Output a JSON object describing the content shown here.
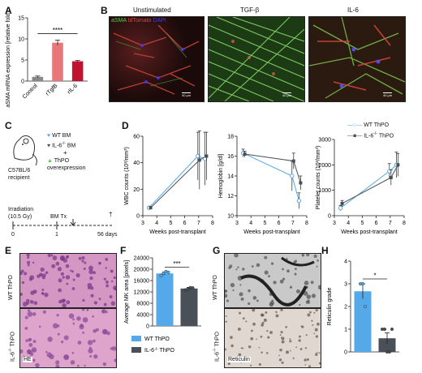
{
  "panel_letters": {
    "A": "A",
    "B": "B",
    "C": "C",
    "D": "D",
    "E": "E",
    "F": "F",
    "G": "G",
    "H": "H"
  },
  "colors": {
    "control": "#888888",
    "rtgfb": "#e8777a",
    "ril6": "#c21232",
    "wt": "#56a9e8",
    "il6ko": "#4a5058",
    "fluor_green": "#5fc25a",
    "fluor_red": "#e0443e",
    "fluor_blue": "#3b3bff",
    "he_pink": "#c77bb0",
    "reticulin_dark": "#2a2a2a"
  },
  "panelB": {
    "titles": [
      "Unstimulated",
      "TGF-β",
      "IL-6"
    ],
    "stain_labels": {
      "asma": "aSMA",
      "tdtomato": "tdTomato",
      "dapi": "DAPI"
    },
    "scalebar": [
      "40 μm",
      "40 μm",
      "40 μm"
    ]
  },
  "panelC": {
    "recipient": "C57BL/6 recipient",
    "legend_wt": "WT BM",
    "legend_il6": "IL-6",
    "legend_il6_suffix": "BM",
    "legend_plus": "+",
    "legend_thpo": "ThPO overexpression",
    "irradiation": "Irradiation (10.5 Gy)",
    "bmtx": "BM Tx",
    "timeline_ticks": [
      "0",
      "1",
      "56 days"
    ],
    "dagger": "†"
  },
  "panelD_legend": {
    "wt": "WT ThPO",
    "il6": "IL-6",
    "il6_suffix": "ThPO"
  },
  "panelE": {
    "wt_label": "WT ThPO",
    "il6_label": "IL-6",
    "il6_suffix": "ThPO",
    "stain": "HE"
  },
  "panelG": {
    "wt_label": "WT ThPO",
    "il6_label": "IL-6",
    "il6_suffix": "ThPO",
    "stain": "Reticulin"
  },
  "panelF_legend": {
    "wt": "WT ThPO",
    "il6": "IL-6",
    "il6_suffix": "ThPO"
  },
  "chart_data": [
    {
      "panel": "A",
      "type": "bar",
      "ylabel": "aSMA mRNA expression [relative fold change]",
      "categories": [
        "Control",
        "rTgfB",
        "rIL-6"
      ],
      "values": [
        1.0,
        9.1,
        4.7
      ],
      "errors": [
        0.2,
        0.6,
        0.2
      ],
      "ylim": [
        0,
        15
      ],
      "yticks": [
        0,
        5,
        10,
        15
      ],
      "significance": {
        "label": "****",
        "from": 0,
        "to": 2
      }
    },
    {
      "panel": "D1",
      "type": "line",
      "ylabel": "WBC counts (10³/mm³)",
      "xlabel": "Weeks post-transplant",
      "xlim": [
        3,
        8
      ],
      "xticks": [
        3,
        4,
        5,
        6,
        7,
        8
      ],
      "ylim": [
        0,
        60
      ],
      "yticks": [
        0,
        20,
        40,
        60
      ],
      "series": [
        {
          "name": "WT ThPO",
          "x": [
            3.5,
            7,
            7.5
          ],
          "y": [
            6,
            45,
            43
          ],
          "err": [
            1,
            18,
            20
          ]
        },
        {
          "name": "IL-6-/- ThPO",
          "x": [
            3.5,
            7,
            7.5
          ],
          "y": [
            6,
            42,
            45
          ],
          "err": [
            1,
            22,
            18
          ]
        }
      ]
    },
    {
      "panel": "D2",
      "type": "line",
      "ylabel": "Hemoglobin [g/dl]",
      "xlabel": "Weeks post-transplant",
      "xlim": [
        3,
        8
      ],
      "xticks": [
        3,
        4,
        5,
        6,
        7,
        8
      ],
      "ylim": [
        10,
        18
      ],
      "yticks": [
        10,
        12,
        14,
        16,
        18
      ],
      "series": [
        {
          "name": "WT ThPO",
          "x": [
            3.5,
            7,
            7.5
          ],
          "y": [
            16.3,
            14,
            11.5
          ],
          "err": [
            0.4,
            1.5,
            0.8
          ]
        },
        {
          "name": "IL-6-/- ThPO",
          "x": [
            3.5,
            7,
            7.5
          ],
          "y": [
            16.2,
            15.5,
            13.3
          ],
          "err": [
            0.3,
            0.8,
            0.7
          ]
        }
      ]
    },
    {
      "panel": "D3",
      "type": "line",
      "ylabel": "Platelet counts (10³/mm³)",
      "xlabel": "Weeks post-transplant",
      "xlim": [
        3,
        8
      ],
      "xticks": [
        3,
        4,
        5,
        6,
        7,
        8
      ],
      "ylim": [
        0,
        3000
      ],
      "yticks": [
        0,
        1000,
        2000,
        3000
      ],
      "series": [
        {
          "name": "WT ThPO",
          "x": [
            3.5,
            7,
            7.5
          ],
          "y": [
            300,
            1750,
            2000
          ],
          "err": [
            100,
            300,
            500
          ]
        },
        {
          "name": "IL-6-/- ThPO",
          "x": [
            3.5,
            7,
            7.5
          ],
          "y": [
            480,
            1500,
            2000
          ],
          "err": [
            120,
            300,
            450
          ]
        }
      ]
    },
    {
      "panel": "F",
      "type": "bar",
      "ylabel": "Average MK area [pixels]",
      "categories": [
        "WT ThPO",
        "IL-6-/- ThPO"
      ],
      "values": [
        18500,
        13200
      ],
      "errors": [
        500,
        400
      ],
      "points": [
        [
          17800,
          18600,
          19200,
          18900
        ],
        [
          12700,
          13000,
          13500,
          13400
        ]
      ],
      "ylim": [
        0,
        24000
      ],
      "yticks": [
        0,
        4000,
        8000,
        12000,
        16000,
        20000,
        24000
      ],
      "significance": {
        "label": "***",
        "from": 0,
        "to": 1
      }
    },
    {
      "panel": "H",
      "type": "bar",
      "ylabel": "Reticulin grade",
      "categories": [
        "WT ThPO",
        "IL-6-/- ThPO"
      ],
      "values": [
        2.67,
        0.6
      ],
      "errors": [
        0.33,
        0.24
      ],
      "points": [
        [
          3,
          3,
          2
        ],
        [
          1,
          1,
          0,
          0,
          1
        ]
      ],
      "ylim": [
        0,
        4
      ],
      "yticks": [
        0,
        1,
        2,
        3,
        4
      ],
      "significance": {
        "label": "*",
        "from": 0,
        "to": 1
      }
    }
  ]
}
